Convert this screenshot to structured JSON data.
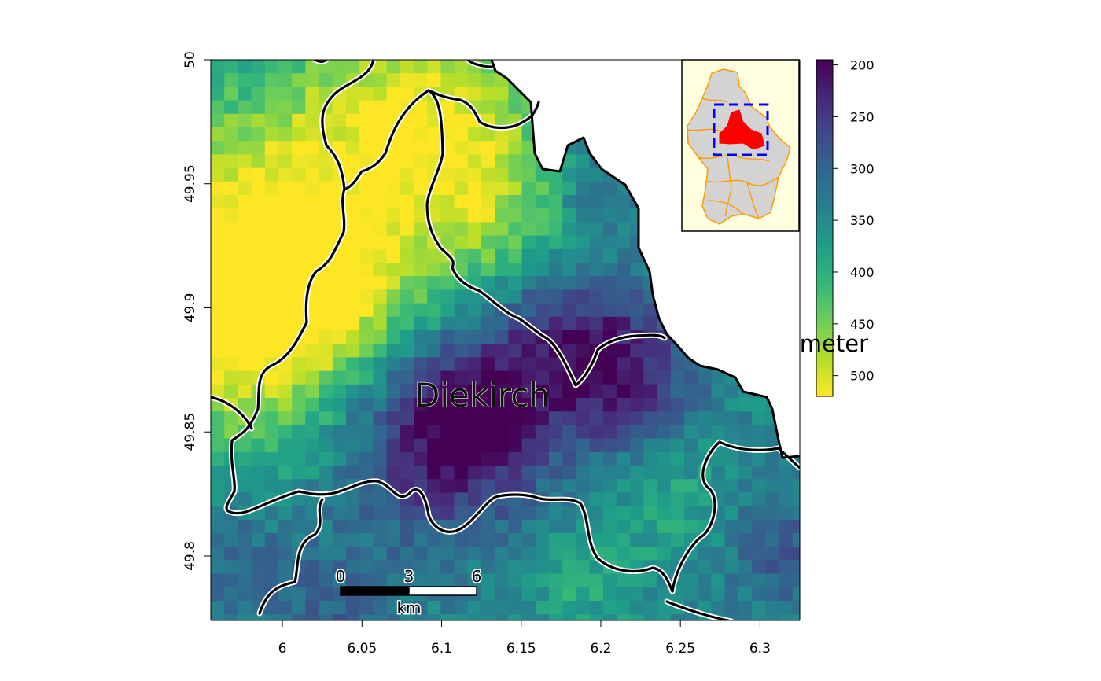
{
  "map": {
    "region_label": "Diekirch",
    "legend_title": "meter",
    "x_axis": {
      "ticks": [
        "6",
        "6.05",
        "6.1",
        "6.15",
        "6.2",
        "6.25",
        "6.3"
      ],
      "range": [
        5.955,
        6.325
      ]
    },
    "y_axis": {
      "ticks": [
        "49.8",
        "49.85",
        "49.9",
        "49.95",
        "50"
      ],
      "range": [
        49.774,
        50.0
      ]
    },
    "legend": {
      "ticks": [
        "200",
        "250",
        "300",
        "350",
        "400",
        "450",
        "500"
      ],
      "range": [
        195,
        520
      ],
      "palette": [
        "#440154",
        "#482878",
        "#3e4a89",
        "#31688e",
        "#26828e",
        "#1f9e89",
        "#35b779",
        "#6ece58",
        "#b5de2b",
        "#fde725"
      ]
    },
    "scale_bar": {
      "labels": [
        "0",
        "3",
        "6"
      ],
      "unit": "km"
    },
    "inset": {
      "background": "#ffffe0",
      "country_fill": "#d3d3d3",
      "border_color": "#ff9900",
      "highlight_color": "#ff0000",
      "frame_color": "#0000ff"
    }
  }
}
